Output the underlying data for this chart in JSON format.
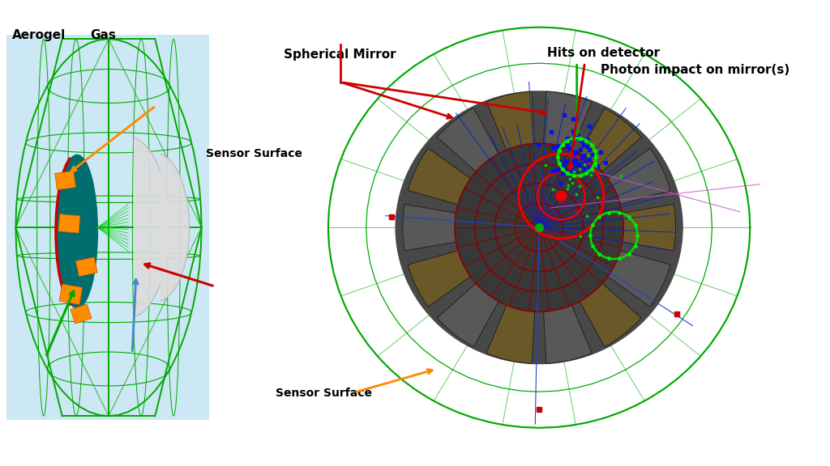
{
  "bg_color": "#ffffff",
  "left_bg_color": "#cce8f4",
  "labels": {
    "aerogel": "Aerogel",
    "gas": "Gas",
    "sensor_surface": "Sensor Surface",
    "spherical_mirror": "Spherical Mirror",
    "hits_on_detector": "Hits on detector",
    "photon_impact": "Photon impact on mirror(s)"
  },
  "green_color": "#00aa00",
  "red_color": "#cc0000",
  "orange_color": "#ff8800",
  "blue_color": "#0055cc",
  "teal_color": "#007878",
  "dark_red": "#8b0000"
}
